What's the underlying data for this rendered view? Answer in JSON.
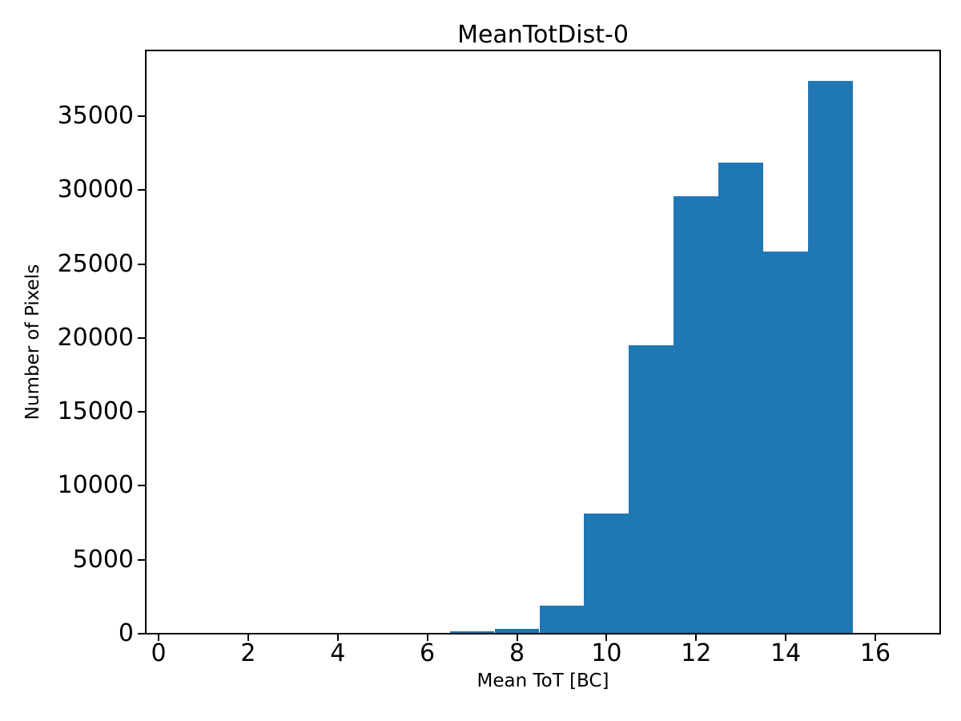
{
  "chart_data": {
    "type": "bar",
    "subtype": "histogram",
    "title": "MeanTotDist-0",
    "xlabel": "Mean ToT [BC]",
    "ylabel": "Number of Pixels",
    "bar_color": "#1f77b4",
    "axis_color": "#000000",
    "background_color": "#ffffff",
    "grid": false,
    "xlim": [
      -0.3,
      17.5
    ],
    "ylim": [
      0,
      39500
    ],
    "x_ticks": [
      0,
      2,
      4,
      6,
      8,
      10,
      12,
      14,
      16
    ],
    "y_ticks": [
      0,
      5000,
      10000,
      15000,
      20000,
      25000,
      30000,
      35000
    ],
    "bin_edges": [
      6.5,
      7.5,
      8.5,
      9.5,
      10.5,
      11.5,
      12.5,
      13.5,
      14.5,
      15.5
    ],
    "counts": [
      110,
      280,
      1850,
      8050,
      19450,
      29520,
      31800,
      25780,
      37320
    ]
  }
}
